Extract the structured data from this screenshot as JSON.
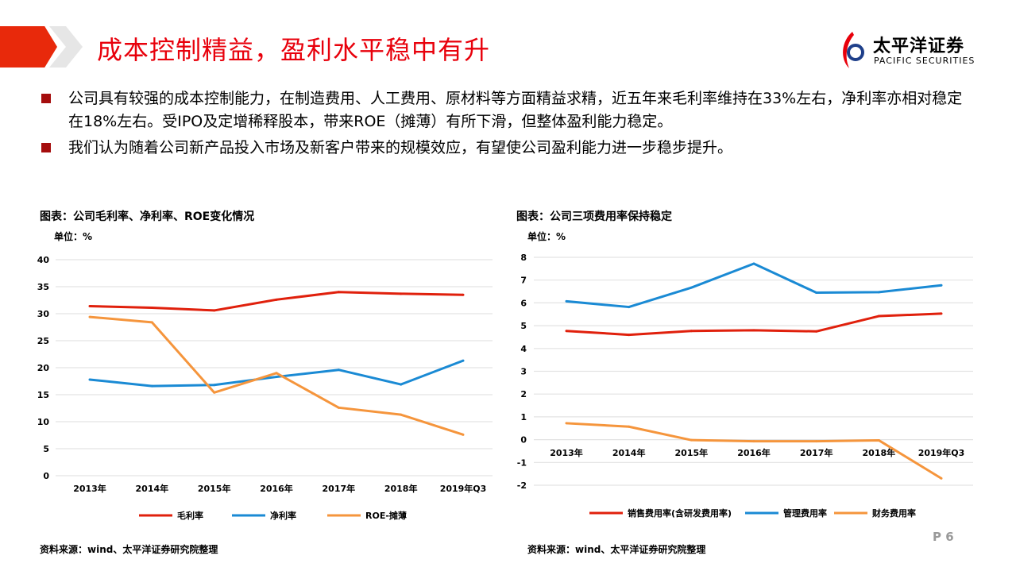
{
  "header": {
    "title": "成本控制精益，盈利水平稳中有升",
    "logo_cn": "太平洋证券",
    "logo_en": "PACIFIC SECURITIES"
  },
  "bullets": [
    "公司具有较强的成本控制能力，在制造费用、人工费用、原材料等方面精益求精，近五年来毛利率维持在33%左右，净利率亦相对稳定在18%左右。受IPO及定增稀释股本，带来ROE（摊薄）有所下滑，但整体盈利能力稳定。",
    "我们认为随着公司新产品投入市场及新客户带来的规模效应，有望使公司盈利能力进一步稳步提升。"
  ],
  "page_number": "P 6",
  "chart_data": [
    {
      "type": "line",
      "title": "图表：公司毛利率、净利率、ROE变化情况",
      "unit": "单位：%",
      "source": "资料来源：wind、太平洋证券研究院整理",
      "categories": [
        "2013年",
        "2014年",
        "2015年",
        "2016年",
        "2017年",
        "2018年",
        "2019年Q3"
      ],
      "ylim": [
        0,
        40
      ],
      "yticks": [
        0,
        5,
        10,
        15,
        20,
        25,
        30,
        35,
        40
      ],
      "grid": true,
      "legend": "bottom",
      "series": [
        {
          "name": "毛利率",
          "color": "#e0200c",
          "values": [
            31.4,
            31.1,
            30.6,
            32.6,
            34.0,
            33.7,
            33.5
          ]
        },
        {
          "name": "净利率",
          "color": "#1a8ad4",
          "values": [
            17.8,
            16.6,
            16.8,
            18.3,
            19.6,
            16.9,
            21.3
          ]
        },
        {
          "name": "ROE-摊薄",
          "color": "#f5953c",
          "values": [
            29.4,
            28.4,
            15.4,
            19.0,
            12.6,
            11.3,
            7.6
          ]
        }
      ]
    },
    {
      "type": "line",
      "title": "图表：公司三项费用率保持稳定",
      "unit": "单位：%",
      "source": "资料来源：wind、太平洋证券研究院整理",
      "categories": [
        "2013年",
        "2014年",
        "2015年",
        "2016年",
        "2017年",
        "2018年",
        "2019年Q3"
      ],
      "ylim": [
        -2,
        8
      ],
      "yticks": [
        -2,
        -1,
        0,
        1,
        2,
        3,
        4,
        5,
        6,
        7,
        8
      ],
      "grid": true,
      "legend": "bottom",
      "series": [
        {
          "name": "销售费用率(含研发费用率)",
          "color": "#e0200c",
          "values": [
            4.77,
            4.6,
            4.77,
            4.8,
            4.75,
            5.42,
            5.53
          ]
        },
        {
          "name": "管理费用率",
          "color": "#1a8ad4",
          "values": [
            6.07,
            5.82,
            6.67,
            7.72,
            6.45,
            6.47,
            6.77
          ]
        },
        {
          "name": "财务费用率",
          "color": "#f5953c",
          "values": [
            0.72,
            0.57,
            -0.02,
            -0.07,
            -0.07,
            -0.03,
            -1.7
          ]
        }
      ]
    }
  ]
}
